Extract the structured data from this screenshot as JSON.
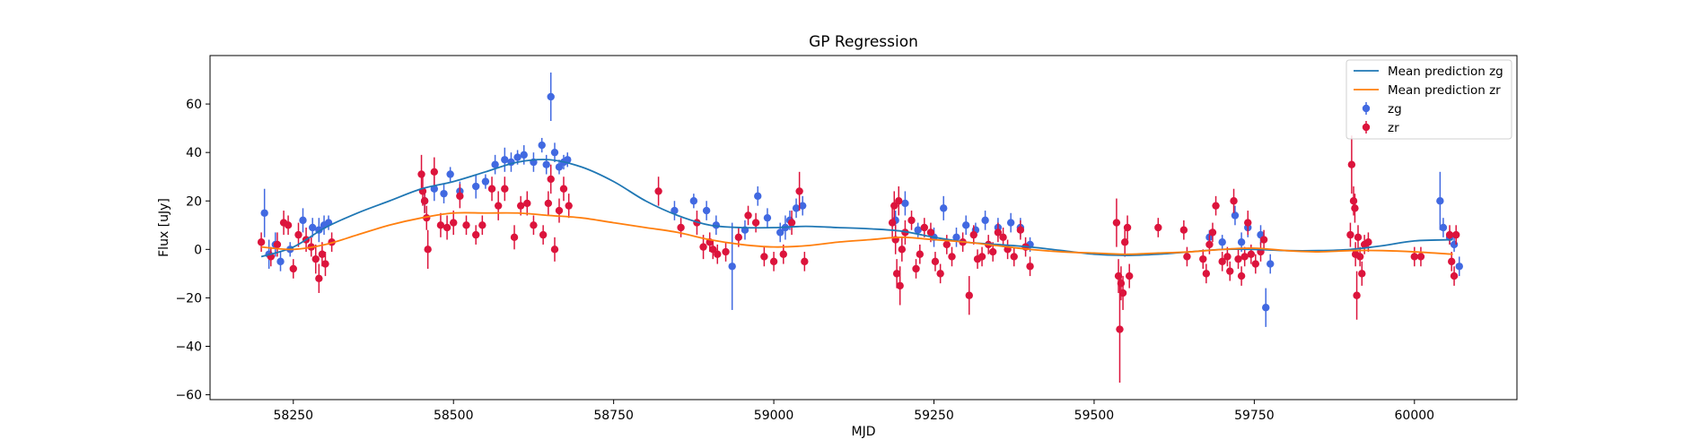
{
  "chart_data": {
    "type": "scatter",
    "title": "GP Regression",
    "xlabel": "MJD",
    "ylabel": "Flux [uJy]",
    "xlim": [
      58120,
      60160
    ],
    "ylim": [
      -62,
      80
    ],
    "xticks": [
      58250,
      58500,
      58750,
      59000,
      59250,
      59500,
      59750,
      60000
    ],
    "yticks": [
      -60,
      -40,
      -20,
      0,
      20,
      40,
      60
    ],
    "grid": false,
    "legend_position": "top-right",
    "series": [
      {
        "name": "Mean prediction zg",
        "kind": "line",
        "color": "#1f77b4",
        "x": [
          58200,
          58250,
          58300,
          58350,
          58400,
          58450,
          58500,
          58550,
          58600,
          58650,
          58700,
          58750,
          58800,
          58850,
          58900,
          58950,
          59000,
          59050,
          59100,
          59150,
          59200,
          59250,
          59300,
          59350,
          59400,
          59450,
          59500,
          59550,
          59600,
          59650,
          59700,
          59750,
          59800,
          59850,
          59900,
          59950,
          60000,
          60060
        ],
        "y": [
          -3,
          1,
          9,
          15,
          20,
          25,
          28,
          32,
          36,
          37,
          34,
          28,
          20,
          14,
          10,
          9,
          9,
          9.5,
          9,
          8.5,
          7.5,
          5,
          3,
          2,
          1,
          -0.5,
          -2,
          -2.5,
          -2,
          -1,
          0,
          0,
          -0.5,
          -0.5,
          0,
          1.5,
          3.5,
          4
        ]
      },
      {
        "name": "Mean prediction zr",
        "kind": "line",
        "color": "#ff7f0e",
        "x": [
          58200,
          58250,
          58300,
          58350,
          58400,
          58450,
          58500,
          58550,
          58600,
          58650,
          58700,
          58750,
          58800,
          58850,
          58900,
          58950,
          59000,
          59050,
          59100,
          59150,
          59200,
          59250,
          59300,
          59350,
          59400,
          59450,
          59500,
          59550,
          59600,
          59650,
          59700,
          59750,
          59800,
          59850,
          59900,
          59950,
          60000,
          60060
        ],
        "y": [
          1,
          0,
          2,
          6,
          10,
          13,
          15,
          15,
          15,
          14,
          13,
          11,
          9,
          7,
          4,
          2,
          1,
          1.5,
          3,
          4,
          5,
          4,
          3,
          1.5,
          0,
          -1,
          -1.5,
          -2,
          -1.5,
          -1,
          0,
          0.5,
          -0.5,
          -1,
          -0.5,
          -0.5,
          -1,
          -2
        ]
      },
      {
        "name": "zg",
        "kind": "errorbar",
        "color": "#4169e1",
        "points": [
          [
            58205,
            15,
            10
          ],
          [
            58212,
            -2,
            6
          ],
          [
            58222,
            2,
            5
          ],
          [
            58230,
            -5,
            4
          ],
          [
            58245,
            0,
            3
          ],
          [
            58265,
            12,
            5
          ],
          [
            58280,
            9,
            4
          ],
          [
            58290,
            8,
            5
          ],
          [
            58298,
            10,
            4
          ],
          [
            58305,
            11,
            3
          ],
          [
            58455,
            20,
            5
          ],
          [
            58470,
            25,
            5
          ],
          [
            58485,
            23,
            4
          ],
          [
            58495,
            31,
            3
          ],
          [
            58510,
            24,
            4
          ],
          [
            58535,
            26,
            5
          ],
          [
            58550,
            28,
            3
          ],
          [
            58565,
            35,
            4
          ],
          [
            58580,
            37,
            5
          ],
          [
            58590,
            36,
            4
          ],
          [
            58600,
            38,
            3
          ],
          [
            58610,
            39,
            4
          ],
          [
            58625,
            36,
            4
          ],
          [
            58638,
            43,
            3
          ],
          [
            58645,
            35,
            4
          ],
          [
            58652,
            63,
            10
          ],
          [
            58658,
            40,
            4
          ],
          [
            58665,
            34,
            3
          ],
          [
            58672,
            36,
            3
          ],
          [
            58678,
            37,
            3
          ],
          [
            58845,
            16,
            4
          ],
          [
            58875,
            20,
            3
          ],
          [
            58895,
            16,
            4
          ],
          [
            58910,
            10,
            4
          ],
          [
            58935,
            -7,
            18
          ],
          [
            58955,
            8,
            4
          ],
          [
            58975,
            22,
            4
          ],
          [
            58990,
            13,
            4
          ],
          [
            59010,
            7,
            4
          ],
          [
            59018,
            9,
            5
          ],
          [
            59025,
            12,
            4
          ],
          [
            59035,
            17,
            4
          ],
          [
            59045,
            18,
            4
          ],
          [
            59190,
            12,
            4
          ],
          [
            59205,
            19,
            5
          ],
          [
            59225,
            8,
            3
          ],
          [
            59250,
            5,
            4
          ],
          [
            59265,
            17,
            5
          ],
          [
            59285,
            5,
            4
          ],
          [
            59300,
            10,
            4
          ],
          [
            59315,
            8,
            3
          ],
          [
            59330,
            12,
            4
          ],
          [
            59350,
            9,
            4
          ],
          [
            59370,
            11,
            4
          ],
          [
            59385,
            9,
            4
          ],
          [
            59400,
            2,
            3
          ],
          [
            59680,
            5,
            3
          ],
          [
            59700,
            3,
            3
          ],
          [
            59720,
            14,
            4
          ],
          [
            59730,
            3,
            4
          ],
          [
            59740,
            9,
            4
          ],
          [
            59760,
            6,
            4
          ],
          [
            59768,
            -24,
            8
          ],
          [
            59775,
            -6,
            4
          ],
          [
            60040,
            20,
            12
          ],
          [
            60045,
            9,
            4
          ],
          [
            60055,
            5,
            3
          ],
          [
            60062,
            2,
            3
          ],
          [
            60070,
            -7,
            4
          ]
        ]
      },
      {
        "name": "zr",
        "kind": "errorbar",
        "color": "#dc143c",
        "points": [
          [
            58200,
            3,
            4
          ],
          [
            58215,
            -3,
            4
          ],
          [
            58225,
            2,
            5
          ],
          [
            58235,
            11,
            5
          ],
          [
            58242,
            10,
            4
          ],
          [
            58250,
            -8,
            4
          ],
          [
            58258,
            6,
            5
          ],
          [
            58270,
            4,
            5
          ],
          [
            58278,
            1,
            4
          ],
          [
            58285,
            -4,
            6
          ],
          [
            58290,
            -12,
            6
          ],
          [
            58295,
            -2,
            5
          ],
          [
            58300,
            -6,
            5
          ],
          [
            58310,
            3,
            4
          ],
          [
            58450,
            31,
            8
          ],
          [
            58452,
            24,
            6
          ],
          [
            58455,
            20,
            5
          ],
          [
            58458,
            13,
            5
          ],
          [
            58460,
            0,
            8
          ],
          [
            58470,
            32,
            6
          ],
          [
            58480,
            10,
            5
          ],
          [
            58490,
            9,
            5
          ],
          [
            58500,
            11,
            5
          ],
          [
            58510,
            22,
            5
          ],
          [
            58520,
            10,
            4
          ],
          [
            58535,
            6,
            4
          ],
          [
            58545,
            10,
            4
          ],
          [
            58560,
            25,
            5
          ],
          [
            58570,
            18,
            6
          ],
          [
            58580,
            25,
            5
          ],
          [
            58595,
            5,
            5
          ],
          [
            58605,
            18,
            4
          ],
          [
            58615,
            19,
            5
          ],
          [
            58625,
            10,
            4
          ],
          [
            58640,
            6,
            4
          ],
          [
            58648,
            19,
            5
          ],
          [
            58652,
            29,
            6
          ],
          [
            58658,
            0,
            5
          ],
          [
            58665,
            16,
            5
          ],
          [
            58672,
            25,
            5
          ],
          [
            58680,
            18,
            5
          ],
          [
            58820,
            24,
            6
          ],
          [
            58855,
            9,
            4
          ],
          [
            58880,
            11,
            5
          ],
          [
            58890,
            1,
            5
          ],
          [
            58900,
            3,
            4
          ],
          [
            58905,
            0,
            4
          ],
          [
            58912,
            -2,
            4
          ],
          [
            58925,
            -1,
            4
          ],
          [
            58945,
            5,
            4
          ],
          [
            58960,
            14,
            4
          ],
          [
            58972,
            11,
            4
          ],
          [
            58985,
            -3,
            4
          ],
          [
            59000,
            -5,
            4
          ],
          [
            59015,
            -2,
            4
          ],
          [
            59028,
            11,
            5
          ],
          [
            59040,
            24,
            8
          ],
          [
            59048,
            -5,
            4
          ],
          [
            59185,
            11,
            6
          ],
          [
            59188,
            18,
            6
          ],
          [
            59190,
            4,
            6
          ],
          [
            59192,
            -10,
            6
          ],
          [
            59195,
            20,
            6
          ],
          [
            59197,
            -15,
            8
          ],
          [
            59200,
            0,
            5
          ],
          [
            59205,
            7,
            5
          ],
          [
            59215,
            12,
            4
          ],
          [
            59222,
            -8,
            4
          ],
          [
            59228,
            -2,
            4
          ],
          [
            59235,
            9,
            4
          ],
          [
            59245,
            7,
            4
          ],
          [
            59252,
            -5,
            4
          ],
          [
            59260,
            -10,
            4
          ],
          [
            59270,
            2,
            4
          ],
          [
            59278,
            -3,
            4
          ],
          [
            59295,
            3,
            4
          ],
          [
            59305,
            -19,
            8
          ],
          [
            59312,
            6,
            4
          ],
          [
            59318,
            -4,
            4
          ],
          [
            59325,
            -3,
            4
          ],
          [
            59335,
            2,
            4
          ],
          [
            59342,
            -1,
            4
          ],
          [
            59350,
            7,
            4
          ],
          [
            59358,
            5,
            4
          ],
          [
            59365,
            0,
            4
          ],
          [
            59375,
            -3,
            4
          ],
          [
            59385,
            8,
            4
          ],
          [
            59393,
            1,
            4
          ],
          [
            59400,
            -7,
            4
          ],
          [
            59535,
            11,
            10
          ],
          [
            59538,
            -11,
            7
          ],
          [
            59540,
            -33,
            22
          ],
          [
            59542,
            -14,
            7
          ],
          [
            59545,
            -18,
            7
          ],
          [
            59548,
            3,
            6
          ],
          [
            59552,
            9,
            5
          ],
          [
            59555,
            -11,
            5
          ],
          [
            59600,
            9,
            4
          ],
          [
            59640,
            8,
            4
          ],
          [
            59645,
            -3,
            4
          ],
          [
            59670,
            -4,
            4
          ],
          [
            59675,
            -10,
            4
          ],
          [
            59680,
            2,
            4
          ],
          [
            59685,
            7,
            4
          ],
          [
            59690,
            18,
            4
          ],
          [
            59700,
            -5,
            4
          ],
          [
            59708,
            -3,
            4
          ],
          [
            59712,
            -9,
            4
          ],
          [
            59718,
            20,
            5
          ],
          [
            59725,
            -4,
            4
          ],
          [
            59730,
            -11,
            4
          ],
          [
            59735,
            -3,
            4
          ],
          [
            59740,
            11,
            5
          ],
          [
            59745,
            -2,
            4
          ],
          [
            59752,
            -6,
            4
          ],
          [
            59760,
            -1,
            4
          ],
          [
            59765,
            4,
            4
          ],
          [
            59900,
            6,
            5
          ],
          [
            59902,
            35,
            12
          ],
          [
            59905,
            20,
            6
          ],
          [
            59907,
            17,
            6
          ],
          [
            59908,
            -2,
            5
          ],
          [
            59910,
            -19,
            10
          ],
          [
            59912,
            5,
            5
          ],
          [
            59915,
            -3,
            4
          ],
          [
            59918,
            -10,
            5
          ],
          [
            59922,
            2,
            4
          ],
          [
            59928,
            3,
            4
          ],
          [
            60000,
            -3,
            4
          ],
          [
            60010,
            -3,
            4
          ],
          [
            60055,
            6,
            4
          ],
          [
            60058,
            -5,
            4
          ],
          [
            60062,
            -11,
            4
          ],
          [
            60065,
            6,
            4
          ]
        ]
      }
    ]
  }
}
